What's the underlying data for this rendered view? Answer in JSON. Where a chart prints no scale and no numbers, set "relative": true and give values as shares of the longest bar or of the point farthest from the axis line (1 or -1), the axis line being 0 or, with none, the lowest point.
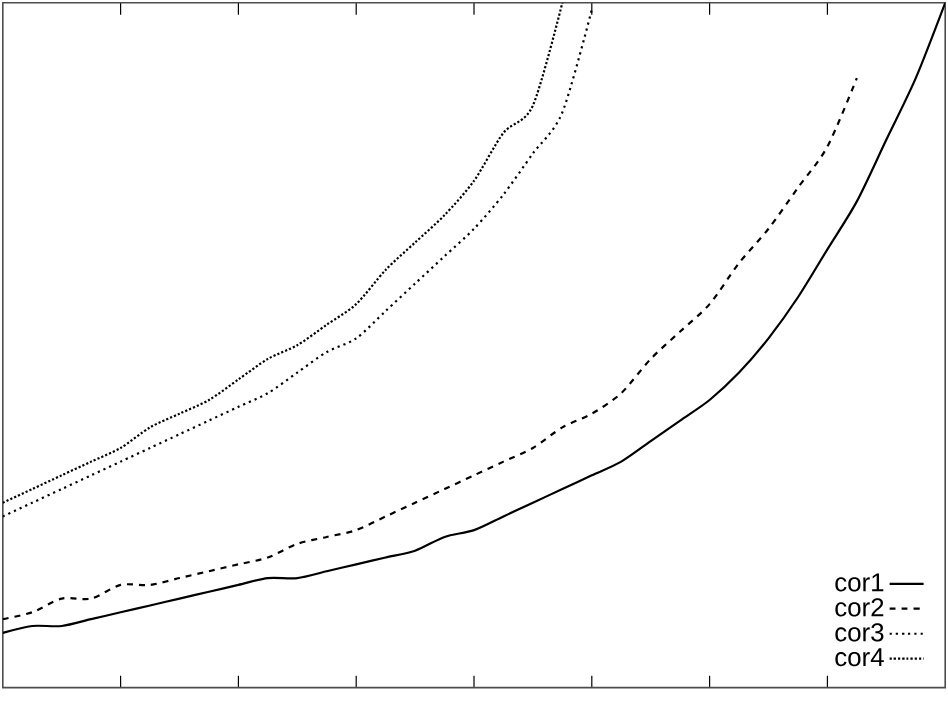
{
  "chart_data": {
    "type": "line",
    "relative": true,
    "legend": "bottom right",
    "grid": false,
    "marker": "none",
    "categories": [
      null,
      null,
      null,
      null,
      null,
      null,
      null,
      null,
      null,
      null,
      null,
      null,
      null,
      null,
      null,
      null,
      null,
      null,
      null,
      null,
      null,
      null,
      null,
      null,
      null,
      null,
      null,
      null,
      null,
      null,
      null,
      null,
      null
    ],
    "series": [
      {
        "name": "cor1",
        "color": "#000000",
        "line_style": "solid",
        "values": [
          0.08,
          0.09,
          0.09,
          0.1,
          0.11,
          0.12,
          0.13,
          0.14,
          0.15,
          0.16,
          0.16,
          0.17,
          0.18,
          0.19,
          0.2,
          0.22,
          0.23,
          0.25,
          0.27,
          0.29,
          0.31,
          0.33,
          0.36,
          0.39,
          0.42,
          0.46,
          0.51,
          0.57,
          0.64,
          0.71,
          0.8,
          0.89,
          1.0
        ]
      },
      {
        "name": "cor2",
        "color": "#000000",
        "line_style": "dashed",
        "values": [
          0.1,
          0.11,
          0.13,
          0.13,
          0.15,
          0.15,
          0.16,
          0.17,
          0.18,
          0.19,
          0.21,
          0.22,
          0.23,
          0.25,
          0.27,
          0.29,
          0.31,
          0.33,
          0.35,
          0.38,
          0.4,
          0.43,
          0.48,
          0.52,
          0.56,
          0.62,
          0.67,
          0.73,
          0.79,
          0.89,
          null,
          null,
          null
        ]
      },
      {
        "name": "cor3",
        "color": "#000000",
        "line_style": "dotted",
        "values": [
          0.25,
          0.27,
          0.29,
          0.31,
          0.33,
          0.35,
          0.37,
          0.39,
          0.41,
          0.43,
          0.46,
          0.49,
          0.51,
          0.55,
          0.59,
          0.63,
          0.67,
          0.72,
          0.78,
          0.84,
          0.99,
          null,
          null,
          null,
          null,
          null,
          null,
          null,
          null,
          null,
          null,
          null,
          null
        ]
      },
      {
        "name": "cor4",
        "color": "#000000",
        "line_style": "dotted",
        "values": [
          0.27,
          0.29,
          0.31,
          0.33,
          0.35,
          0.38,
          0.4,
          0.42,
          0.45,
          0.48,
          0.5,
          0.53,
          0.56,
          0.61,
          0.65,
          0.69,
          0.74,
          0.81,
          0.85,
          1.0,
          null,
          null,
          null,
          null,
          null,
          null,
          null,
          null,
          null,
          null,
          null,
          null,
          null
        ]
      }
    ]
  }
}
